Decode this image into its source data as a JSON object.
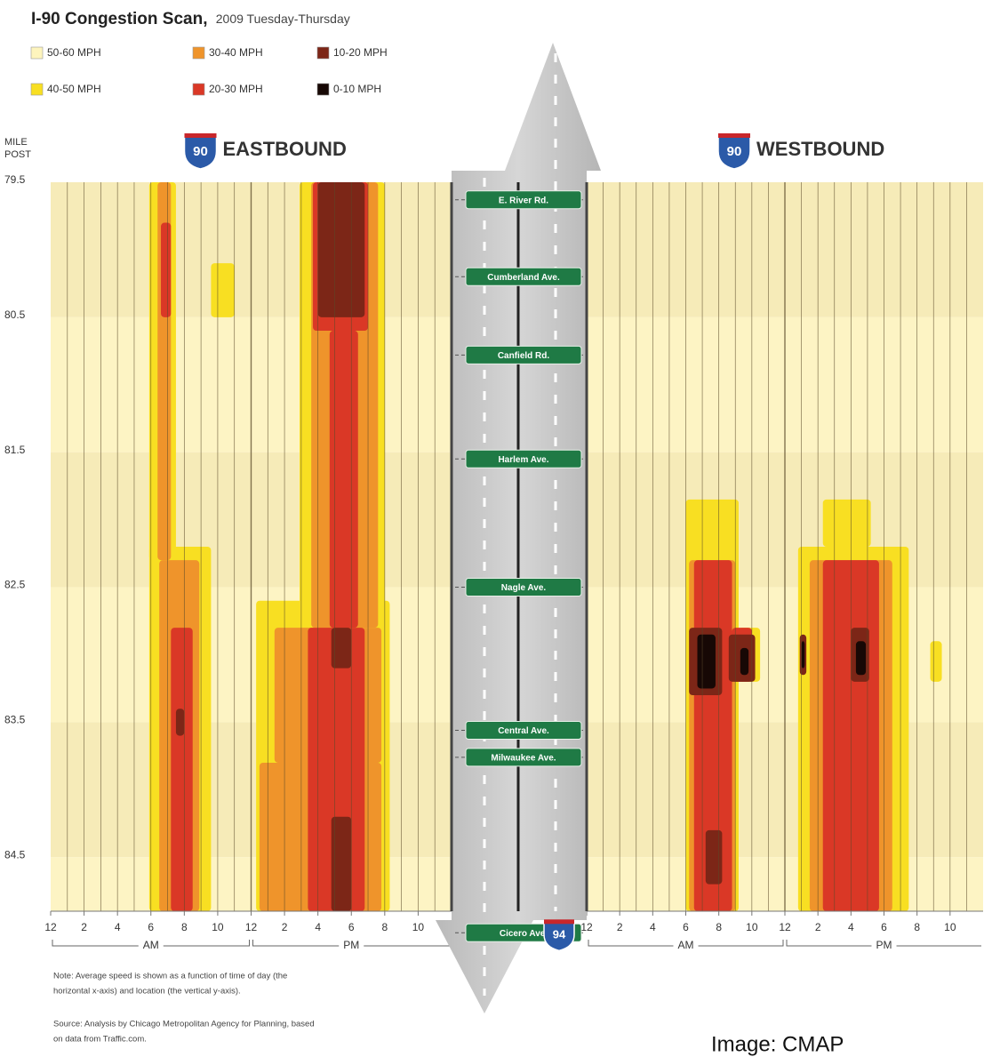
{
  "chart_data": {
    "type": "heatmap",
    "title": "I-90 Congestion Scan,",
    "subtitle": "2009 Tuesday-Thursday",
    "legend": [
      {
        "label": "50-60 MPH",
        "color": "#fdf4bd"
      },
      {
        "label": "40-50 MPH",
        "color": "#f8df22"
      },
      {
        "label": "30-40 MPH",
        "color": "#ef942b"
      },
      {
        "label": "20-30 MPH",
        "color": "#da3826"
      },
      {
        "label": "10-20 MPH",
        "color": "#7c2617"
      },
      {
        "label": "0-10 MPH",
        "color": "#170805"
      }
    ],
    "ylabel_lines": [
      "MILE",
      "POST"
    ],
    "ylim": [
      79.5,
      84.9
    ],
    "yticks": [
      79.5,
      80.5,
      81.5,
      82.5,
      83.5,
      84.5
    ],
    "xlim": [
      0,
      24
    ],
    "xticks": [
      {
        "value": 0,
        "label": "12"
      },
      2,
      4,
      6,
      8,
      10,
      {
        "value": 12,
        "label": "12"
      },
      {
        "value": 14,
        "label": "2"
      },
      {
        "value": 16,
        "label": "4"
      },
      {
        "value": 18,
        "label": "6"
      },
      {
        "value": 20,
        "label": "8"
      },
      {
        "value": 22,
        "label": "10"
      }
    ],
    "xgrid": [
      1,
      2,
      3,
      4,
      5,
      6,
      7,
      8,
      9,
      10,
      11,
      12,
      13,
      14,
      15,
      16,
      17,
      18,
      19,
      20,
      21,
      22,
      23
    ],
    "periods": [
      {
        "label": "AM",
        "range": [
          0,
          12
        ]
      },
      {
        "label": "PM",
        "range": [
          12,
          24
        ]
      }
    ],
    "panels": [
      {
        "title": "EASTBOUND",
        "shield": "90",
        "zones": [
          {
            "speed": 1,
            "t": [
              5.9,
              7.5
            ],
            "m": [
              79.5,
              82.3
            ]
          },
          {
            "speed": 1,
            "t": [
              5.9,
              9.6
            ],
            "m": [
              82.2,
              84.9
            ]
          },
          {
            "speed": 1,
            "t": [
              9.6,
              11.0
            ],
            "m": [
              80.1,
              80.5
            ]
          },
          {
            "speed": 1,
            "t": [
              14.9,
              20.0
            ],
            "m": [
              79.5,
              82.7
            ]
          },
          {
            "speed": 1,
            "t": [
              12.3,
              20.3
            ],
            "m": [
              82.6,
              84.9
            ]
          },
          {
            "speed": 2,
            "t": [
              6.4,
              7.2
            ],
            "m": [
              79.5,
              82.3
            ]
          },
          {
            "speed": 2,
            "t": [
              6.5,
              8.9
            ],
            "m": [
              82.3,
              84.9
            ]
          },
          {
            "speed": 2,
            "t": [
              15.6,
              19.6
            ],
            "m": [
              79.5,
              82.8
            ]
          },
          {
            "speed": 2,
            "t": [
              13.4,
              19.8
            ],
            "m": [
              82.8,
              83.8
            ]
          },
          {
            "speed": 2,
            "t": [
              12.5,
              19.8
            ],
            "m": [
              83.8,
              84.9
            ]
          },
          {
            "speed": 3,
            "t": [
              6.6,
              7.2
            ],
            "m": [
              79.8,
              80.5
            ]
          },
          {
            "speed": 3,
            "t": [
              7.2,
              8.5
            ],
            "m": [
              82.8,
              84.9
            ]
          },
          {
            "speed": 3,
            "t": [
              15.7,
              19.0
            ],
            "m": [
              79.5,
              80.6
            ]
          },
          {
            "speed": 3,
            "t": [
              16.7,
              18.4
            ],
            "m": [
              80.6,
              82.8
            ]
          },
          {
            "speed": 3,
            "t": [
              15.4,
              18.8
            ],
            "m": [
              82.8,
              84.9
            ]
          },
          {
            "speed": 4,
            "t": [
              7.5,
              8.0
            ],
            "m": [
              83.4,
              83.6
            ]
          },
          {
            "speed": 4,
            "t": [
              16.0,
              18.8
            ],
            "m": [
              79.5,
              80.5
            ]
          },
          {
            "speed": 4,
            "t": [
              16.8,
              18.0
            ],
            "m": [
              82.8,
              83.1
            ]
          },
          {
            "speed": 4,
            "t": [
              16.8,
              18.0
            ],
            "m": [
              84.2,
              84.9
            ]
          }
        ]
      },
      {
        "title": "WESTBOUND",
        "shield": "90",
        "zones": [
          {
            "speed": 1,
            "t": [
              6.0,
              9.2
            ],
            "m": [
              81.85,
              84.9
            ]
          },
          {
            "speed": 1,
            "t": [
              9.2,
              10.5
            ],
            "m": [
              82.8,
              83.2
            ]
          },
          {
            "speed": 1,
            "t": [
              14.3,
              17.2
            ],
            "m": [
              81.85,
              82.2
            ]
          },
          {
            "speed": 1,
            "t": [
              12.8,
              19.5
            ],
            "m": [
              82.2,
              84.9
            ]
          },
          {
            "speed": 1,
            "t": [
              20.8,
              21.5
            ],
            "m": [
              82.9,
              83.2
            ]
          },
          {
            "speed": 2,
            "t": [
              6.2,
              9.0
            ],
            "m": [
              82.3,
              84.9
            ]
          },
          {
            "speed": 2,
            "t": [
              13.5,
              18.5
            ],
            "m": [
              82.3,
              84.9
            ]
          },
          {
            "speed": 3,
            "t": [
              6.5,
              8.8
            ],
            "m": [
              82.3,
              84.9
            ]
          },
          {
            "speed": 3,
            "t": [
              8.8,
              10.0
            ],
            "m": [
              82.8,
              83.2
            ]
          },
          {
            "speed": 3,
            "t": [
              14.3,
              17.7
            ],
            "m": [
              82.3,
              84.9
            ]
          },
          {
            "speed": 4,
            "t": [
              6.2,
              8.2
            ],
            "m": [
              82.8,
              83.3
            ]
          },
          {
            "speed": 4,
            "t": [
              8.6,
              10.2
            ],
            "m": [
              82.85,
              83.2
            ]
          },
          {
            "speed": 4,
            "t": [
              7.2,
              8.2
            ],
            "m": [
              84.3,
              84.7
            ]
          },
          {
            "speed": 4,
            "t": [
              16.0,
              17.1
            ],
            "m": [
              82.8,
              83.2
            ]
          },
          {
            "speed": 4,
            "t": [
              12.9,
              13.3
            ],
            "m": [
              82.85,
              83.15
            ]
          },
          {
            "speed": 5,
            "t": [
              6.7,
              7.8
            ],
            "m": [
              82.85,
              83.25
            ]
          },
          {
            "speed": 5,
            "t": [
              9.3,
              9.8
            ],
            "m": [
              82.95,
              83.15
            ]
          },
          {
            "speed": 5,
            "t": [
              16.3,
              16.9
            ],
            "m": [
              82.9,
              83.15
            ]
          },
          {
            "speed": 5,
            "t": [
              13.0,
              13.2
            ],
            "m": [
              82.9,
              83.1
            ]
          }
        ]
      }
    ],
    "streets": [
      {
        "name": "E. River Rd.",
        "mile": 79.63
      },
      {
        "name": "Cumberland Ave.",
        "mile": 80.2
      },
      {
        "name": "Canfield Rd.",
        "mile": 80.78
      },
      {
        "name": "Harlem Ave.",
        "mile": 81.55
      },
      {
        "name": "Nagle Ave.",
        "mile": 82.5
      },
      {
        "name": "Central Ave.",
        "mile": 83.56
      },
      {
        "name": "Milwaukee Ave.",
        "mile": 83.76
      },
      {
        "name": "Cicero Ave.",
        "mile": 85.06
      }
    ],
    "interstate_shield": "94",
    "note": [
      "Note: Average speed is shown as a function of time of day (the",
      "horizontal x-axis) and location (the vertical y-axis)."
    ],
    "source": [
      "Source: Analysis by Chicago Metropolitan Agency for Planning, based",
      "on data from Traffic.com."
    ],
    "credit": "Image: CMAP"
  }
}
